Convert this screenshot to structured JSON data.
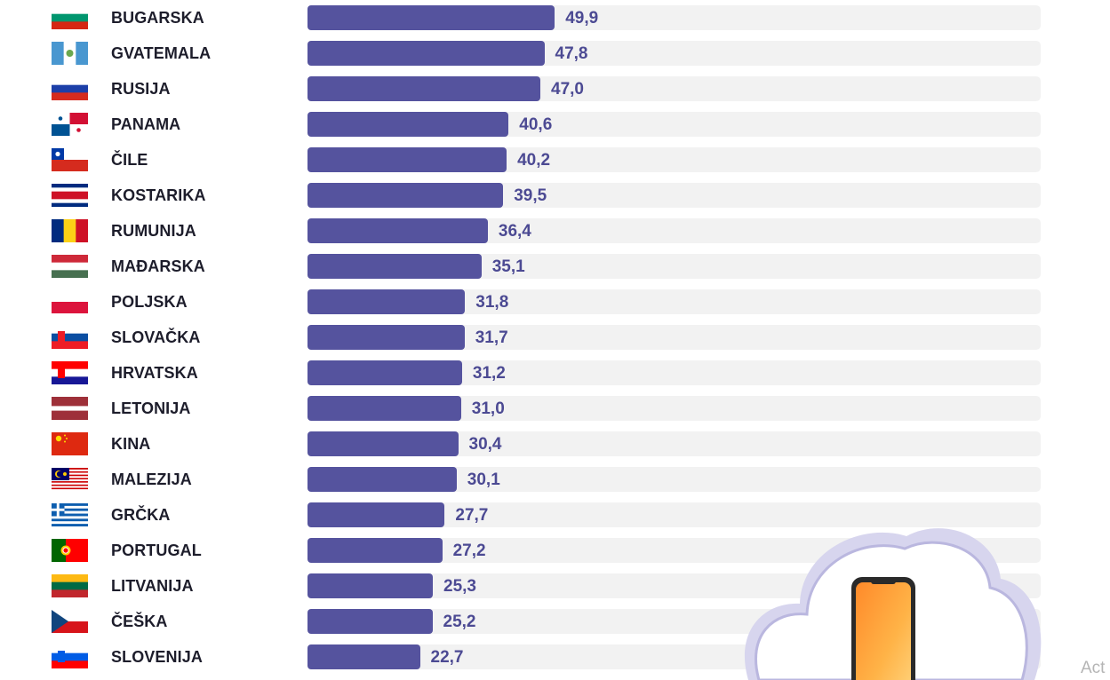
{
  "chart_data": {
    "type": "bar",
    "orientation": "horizontal",
    "categories": [
      "BUGARSKA",
      "GVATEMALA",
      "RUSIJA",
      "PANAMA",
      "ČILE",
      "KOSTARIKA",
      "RUMUNIJA",
      "MAĐARSKA",
      "POLJSKA",
      "SLOVAČKA",
      "HRVATSKA",
      "LETONIJA",
      "KINA",
      "MALEZIJA",
      "GRČKA",
      "PORTUGAL",
      "LITVANIJA",
      "ČEŠKA",
      "SLOVENIJA"
    ],
    "values": [
      49.9,
      47.8,
      47.0,
      40.6,
      40.2,
      39.5,
      36.4,
      35.1,
      31.8,
      31.7,
      31.2,
      31.0,
      30.4,
      30.1,
      27.7,
      27.2,
      25.3,
      25.2,
      22.7
    ],
    "value_labels": [
      "49,9",
      "47,8",
      "47,0",
      "40,6",
      "40,2",
      "39,5",
      "36,4",
      "35,1",
      "31,8",
      "31,7",
      "31,2",
      "31,0",
      "30,4",
      "30,1",
      "27,7",
      "27,2",
      "25,3",
      "25,2",
      "22,7"
    ],
    "xlim": [
      0,
      148
    ],
    "colors": {
      "bar": "#55539e",
      "track": "#f2f2f2",
      "value": "#4c4a93",
      "label": "#1d1d2b"
    }
  },
  "flags": [
    {
      "name": "bulgaria-flag",
      "stripes": "h",
      "colors": [
        "#ffffff",
        "#00966e",
        "#d62612"
      ]
    },
    {
      "name": "guatemala-flag",
      "stripes": "v",
      "colors": [
        "#4997d0",
        "#ffffff",
        "#4997d0"
      ],
      "emblem": "#6aa84f"
    },
    {
      "name": "russia-flag",
      "stripes": "h",
      "colors": [
        "#ffffff",
        "#1c3fa8",
        "#d52b1e"
      ]
    },
    {
      "name": "panama-flag",
      "type": "panama"
    },
    {
      "name": "chile-flag",
      "type": "chile"
    },
    {
      "name": "costa-rica-flag",
      "stripes": "h",
      "colors": [
        "#002b7f",
        "#ffffff",
        "#ce1126",
        "#ce1126",
        "#ffffff",
        "#002b7f"
      ]
    },
    {
      "name": "romania-flag",
      "stripes": "v",
      "colors": [
        "#002b7f",
        "#fcd116",
        "#ce1126"
      ]
    },
    {
      "name": "hungary-flag",
      "stripes": "h",
      "colors": [
        "#ce2939",
        "#ffffff",
        "#477050"
      ]
    },
    {
      "name": "poland-flag",
      "stripes": "h",
      "colors": [
        "#ffffff",
        "#dc143c"
      ]
    },
    {
      "name": "slovakia-flag",
      "stripes": "h",
      "colors": [
        "#ffffff",
        "#0b4ea2",
        "#ee1c25"
      ],
      "emblem": "#ee1c25"
    },
    {
      "name": "croatia-flag",
      "stripes": "h",
      "colors": [
        "#ff0000",
        "#ffffff",
        "#171796"
      ],
      "emblem": "#ff0000"
    },
    {
      "name": "latvia-flag",
      "stripes": "h",
      "colors": [
        "#9e3039",
        "#9e3039",
        "#ffffff",
        "#9e3039",
        "#9e3039"
      ]
    },
    {
      "name": "china-flag",
      "type": "china"
    },
    {
      "name": "malaysia-flag",
      "type": "malaysia"
    },
    {
      "name": "greece-flag",
      "type": "greece"
    },
    {
      "name": "portugal-flag",
      "type": "portugal"
    },
    {
      "name": "lithuania-flag",
      "stripes": "h",
      "colors": [
        "#fdb913",
        "#006a44",
        "#c1272d"
      ]
    },
    {
      "name": "czechia-flag",
      "type": "czechia"
    },
    {
      "name": "slovenia-flag",
      "stripes": "h",
      "colors": [
        "#ffffff",
        "#005ce5",
        "#ff0000"
      ],
      "emblem": "#005ce5"
    }
  ],
  "decoration": {
    "icon": "cloud-phone-icon"
  },
  "overlay": {
    "corner_text": "Act"
  }
}
